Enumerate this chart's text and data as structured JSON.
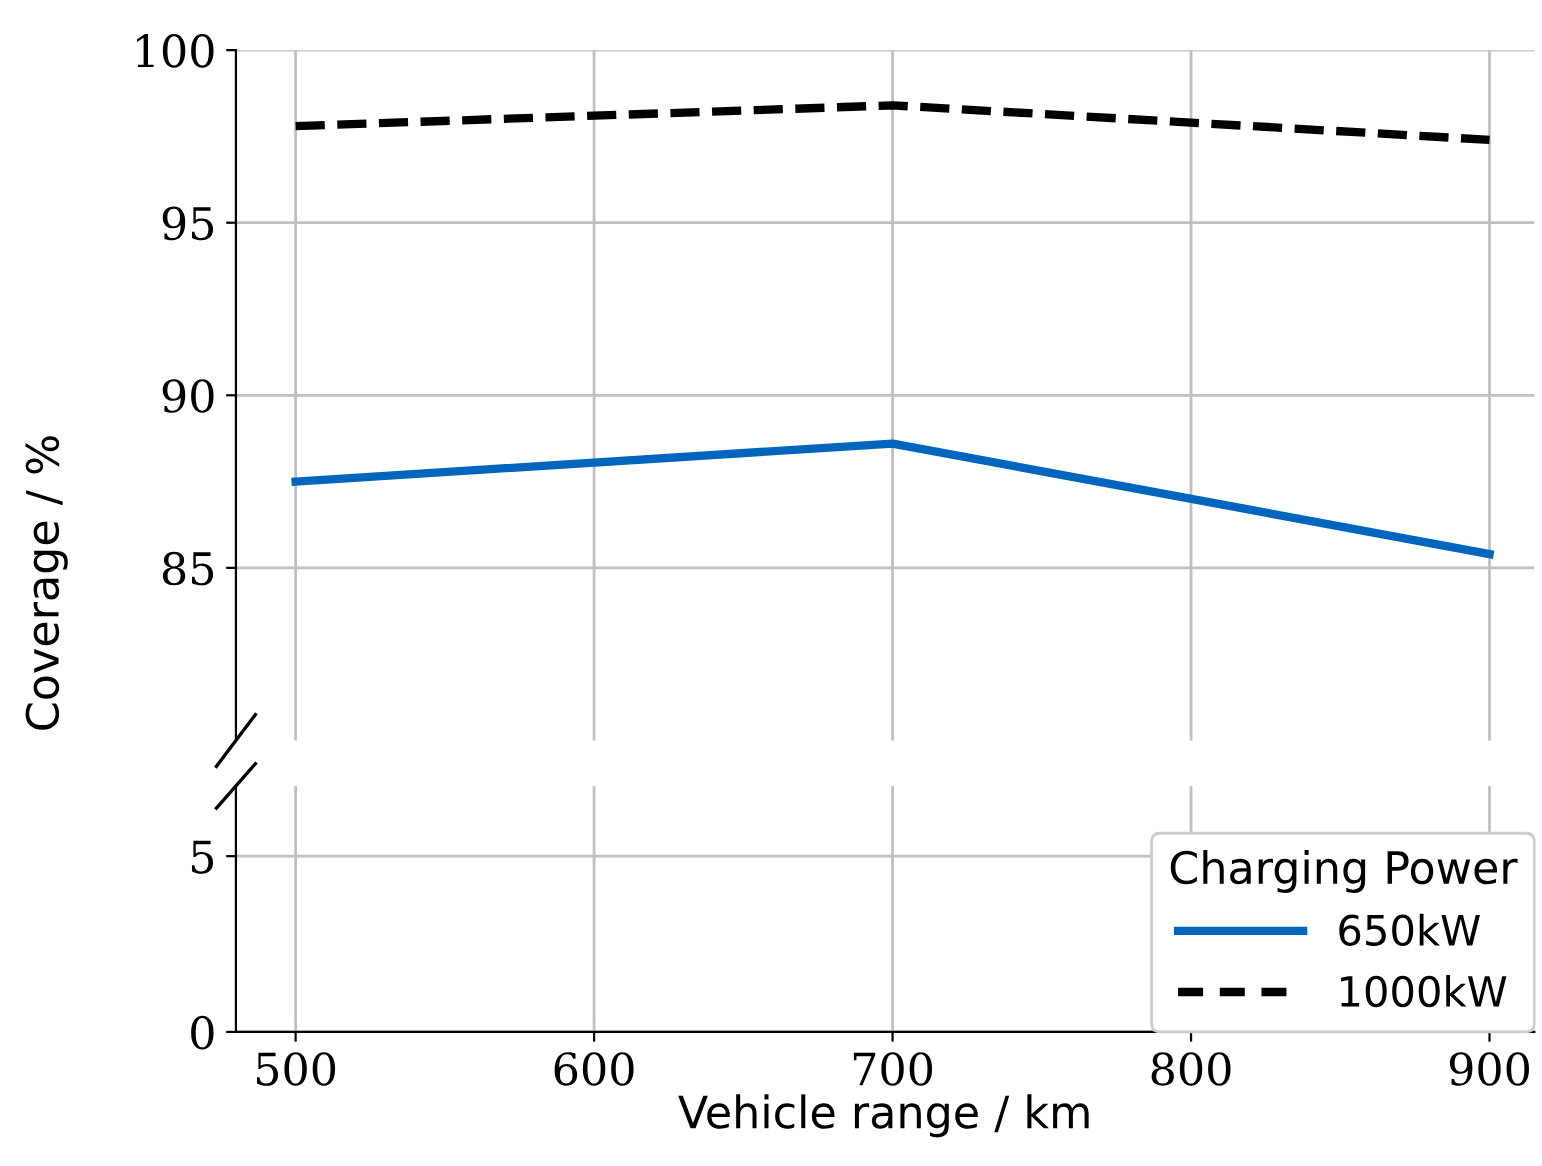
{
  "chart_data": [
    {
      "type": "line",
      "ylabel": "Coverage / %",
      "legend_title": "Charging Power",
      "legend": "bottom right",
      "x": [
        500,
        700,
        900
      ],
      "xlim": [
        480,
        915
      ],
      "xticks": [
        500,
        600,
        700,
        800,
        900
      ],
      "ylim": [
        80,
        100
      ],
      "yticks": [
        85,
        90,
        95,
        100
      ],
      "grid": true,
      "tick_labels": "y",
      "series": [
        {
          "name": "650kW",
          "color": "#0065bd",
          "values": [
            87.5,
            88.6,
            85.4
          ],
          "line_style": "solid"
        },
        {
          "name": "1000kW",
          "color": "#000000",
          "values": [
            97.8,
            98.4,
            97.4
          ],
          "line_style": "dashed"
        }
      ]
    },
    {
      "type": "line",
      "xlabel": "Vehicle range / km",
      "xlim": [
        480,
        915
      ],
      "xticks": [
        500,
        600,
        700,
        800,
        900
      ],
      "ylim": [
        0,
        7
      ],
      "yticks": [
        0,
        5
      ],
      "grid": true
    }
  ]
}
